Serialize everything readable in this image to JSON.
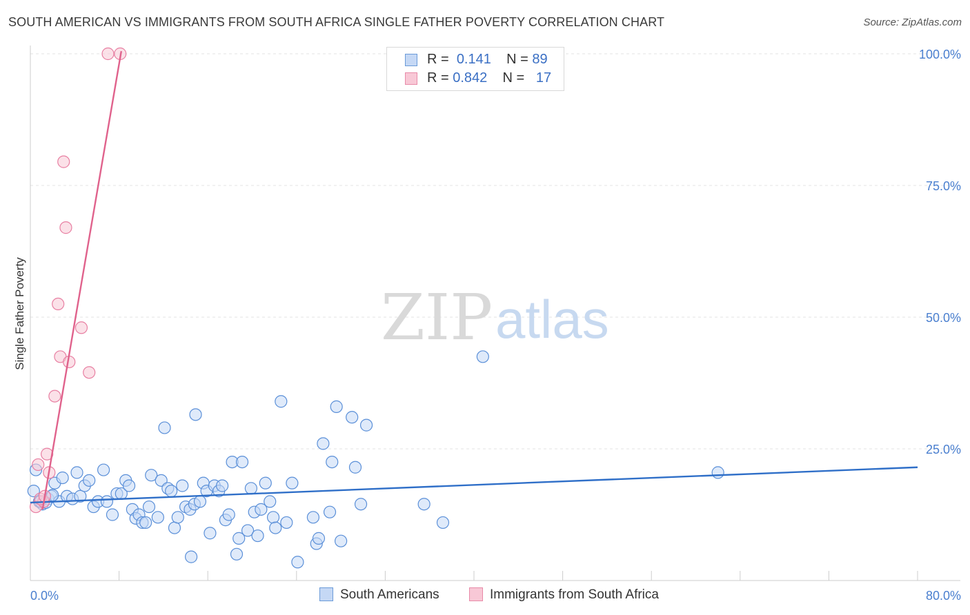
{
  "title": "SOUTH AMERICAN VS IMMIGRANTS FROM SOUTH AFRICA SINGLE FATHER POVERTY CORRELATION CHART",
  "source": "Source: ZipAtlas.com",
  "watermark": {
    "zip": "ZIP",
    "atlas": "atlas"
  },
  "legend": {
    "rows": [
      {
        "r_label": "R =",
        "r_value": "0.141",
        "n_label": "N =",
        "n_value": "89",
        "fill": "#c5d8f5",
        "stroke": "#6a9ad8"
      },
      {
        "r_label": "R =",
        "r_value": "0.842",
        "n_label": "N =",
        "n_value": "17",
        "fill": "#f8c8d6",
        "stroke": "#e88aa8"
      }
    ]
  },
  "bottom_legend": [
    {
      "label": "South Americans",
      "fill": "#c5d8f5",
      "stroke": "#6a9ad8"
    },
    {
      "label": "Immigrants from South Africa",
      "fill": "#f8c8d6",
      "stroke": "#e88aa8"
    }
  ],
  "chart_data": {
    "type": "scatter",
    "title": "SOUTH AMERICAN VS IMMIGRANTS FROM SOUTH AFRICA SINGLE FATHER POVERTY CORRELATION CHART",
    "xlabel": "",
    "ylabel": "Single Father Poverty",
    "xlim": [
      0,
      80
    ],
    "ylim": [
      0,
      105
    ],
    "x_tick_labels": [
      "0.0%",
      "80.0%"
    ],
    "y_ticks": [
      25,
      50,
      75,
      100
    ],
    "y_tick_labels": [
      "25.0%",
      "50.0%",
      "75.0%",
      "100.0%"
    ],
    "grid": true,
    "series": [
      {
        "name": "South Americans",
        "color": "#5a8fd8",
        "fill": "#c5d8f5",
        "trend": {
          "x": [
            0,
            80
          ],
          "y": [
            14.8,
            21.5
          ],
          "color": "#2f6fc8"
        },
        "points": [
          [
            0.3,
            17
          ],
          [
            0.5,
            21
          ],
          [
            0.8,
            15
          ],
          [
            1.1,
            14.5
          ],
          [
            1.6,
            15.5
          ],
          [
            1.9,
            16
          ],
          [
            2.2,
            18.5
          ],
          [
            2.6,
            15
          ],
          [
            2.9,
            19.5
          ],
          [
            3.3,
            16
          ],
          [
            3.8,
            15.5
          ],
          [
            4.2,
            20.5
          ],
          [
            4.5,
            16
          ],
          [
            4.9,
            18
          ],
          [
            5.3,
            19
          ],
          [
            5.7,
            14
          ],
          [
            6.1,
            15
          ],
          [
            6.6,
            21
          ],
          [
            6.9,
            15
          ],
          [
            7.4,
            12.5
          ],
          [
            7.8,
            16.5
          ],
          [
            8.2,
            16.5
          ],
          [
            8.6,
            19
          ],
          [
            8.9,
            18
          ],
          [
            9.2,
            13.5
          ],
          [
            9.5,
            11.8
          ],
          [
            9.8,
            12.5
          ],
          [
            10.1,
            11
          ],
          [
            10.4,
            11
          ],
          [
            10.7,
            14
          ],
          [
            10.9,
            20
          ],
          [
            11.5,
            12
          ],
          [
            11.8,
            19
          ],
          [
            12.1,
            29
          ],
          [
            12.4,
            17.5
          ],
          [
            12.7,
            17
          ],
          [
            13.0,
            10
          ],
          [
            13.3,
            12
          ],
          [
            13.7,
            18
          ],
          [
            14.0,
            14
          ],
          [
            14.4,
            13.5
          ],
          [
            14.8,
            14.5
          ],
          [
            14.5,
            4.5
          ],
          [
            14.9,
            31.5
          ],
          [
            15.3,
            15
          ],
          [
            15.6,
            18.5
          ],
          [
            15.9,
            17
          ],
          [
            16.2,
            9
          ],
          [
            16.6,
            18
          ],
          [
            17.0,
            17
          ],
          [
            17.3,
            18
          ],
          [
            17.6,
            11.5
          ],
          [
            17.9,
            12.5
          ],
          [
            18.2,
            22.5
          ],
          [
            18.6,
            5
          ],
          [
            18.8,
            8
          ],
          [
            19.1,
            22.5
          ],
          [
            19.6,
            9.5
          ],
          [
            19.9,
            17.5
          ],
          [
            20.2,
            13
          ],
          [
            20.5,
            8.5
          ],
          [
            20.8,
            13.5
          ],
          [
            21.2,
            18.5
          ],
          [
            21.6,
            15
          ],
          [
            21.9,
            12
          ],
          [
            22.1,
            10
          ],
          [
            22.6,
            34
          ],
          [
            23.1,
            11
          ],
          [
            23.6,
            18.5
          ],
          [
            24.1,
            3.5
          ],
          [
            25.5,
            12
          ],
          [
            25.8,
            7
          ],
          [
            26.0,
            8
          ],
          [
            26.4,
            26
          ],
          [
            27.0,
            13
          ],
          [
            27.2,
            22.5
          ],
          [
            27.6,
            33
          ],
          [
            28.0,
            7.5
          ],
          [
            29.0,
            31
          ],
          [
            29.3,
            21.5
          ],
          [
            29.8,
            14.5
          ],
          [
            30.3,
            29.5
          ],
          [
            35.5,
            14.5
          ],
          [
            37.2,
            11
          ],
          [
            40.8,
            42.5
          ],
          [
            62.0,
            20.5
          ],
          [
            0.9,
            15
          ],
          [
            1.4,
            14.8
          ],
          [
            2.0,
            16.2
          ]
        ]
      },
      {
        "name": "Immigrants from South Africa",
        "color": "#e87fa2",
        "fill": "#f8c8d6",
        "trend": {
          "x": [
            1.1,
            8.2
          ],
          "y": [
            13.5,
            100.5
          ],
          "color": "#e0628c"
        },
        "points": [
          [
            0.5,
            14
          ],
          [
            0.7,
            22
          ],
          [
            1.2,
            15
          ],
          [
            1.5,
            24
          ],
          [
            1.7,
            20.5
          ],
          [
            2.2,
            35
          ],
          [
            2.7,
            42.5
          ],
          [
            3.0,
            79.5
          ],
          [
            3.2,
            67
          ],
          [
            3.5,
            41.5
          ],
          [
            2.5,
            52.5
          ],
          [
            4.6,
            48
          ],
          [
            5.3,
            39.5
          ],
          [
            7.0,
            100
          ],
          [
            8.1,
            100
          ],
          [
            0.9,
            15.5
          ],
          [
            1.3,
            16
          ]
        ]
      }
    ]
  }
}
